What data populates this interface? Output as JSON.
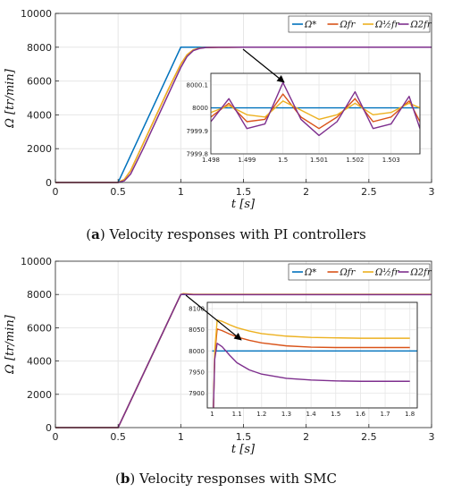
{
  "colors": {
    "ref": "#0072BD",
    "nominal": "#D95319",
    "half": "#EDB120",
    "double": "#7E2F8E",
    "grid": "#e6e6e6",
    "arrow": "#000000"
  },
  "chart_data": [
    {
      "type": "line",
      "panel_label": "a",
      "caption": "Velocity responses with PI controllers",
      "xlabel": "t [s]",
      "ylabel": "Ω [tr/min]",
      "xlim": [
        0,
        3
      ],
      "ylim": [
        0,
        10000
      ],
      "xticks": [
        0,
        0.5,
        1,
        1.5,
        2,
        2.5,
        3
      ],
      "yticks": [
        0,
        2000,
        4000,
        6000,
        8000,
        10000
      ],
      "xtick_labels": [
        "0",
        "0.5",
        "1",
        "1.5",
        "2",
        "2.5",
        "3"
      ],
      "ytick_labels": [
        "0",
        "2000",
        "4000",
        "6000",
        "8000",
        "10000"
      ],
      "grid": true,
      "legend": "top-right",
      "legend_entries": [
        "Ω*",
        "Ωfr",
        "Ω½fr",
        "Ω2fr"
      ],
      "series": [
        {
          "name": "Ω*",
          "x": [
            0,
            0.5,
            1.0,
            3.0
          ],
          "y": [
            0,
            0,
            8000,
            8000
          ]
        },
        {
          "name": "Ωfr",
          "x": [
            0,
            0.5,
            0.55,
            0.6,
            0.7,
            0.8,
            0.9,
            1.0,
            1.05,
            1.1,
            1.15,
            1.2,
            1.3,
            1.5,
            3.0
          ],
          "y": [
            0,
            0,
            180,
            700,
            2300,
            3900,
            5500,
            7000,
            7550,
            7850,
            7950,
            7985,
            7998,
            8000,
            8000
          ]
        },
        {
          "name": "Ω½fr",
          "x": [
            0,
            0.5,
            0.55,
            0.6,
            0.7,
            0.8,
            0.9,
            1.0,
            1.05,
            1.1,
            1.15,
            1.2,
            1.3,
            1.5,
            3.0
          ],
          "y": [
            0,
            0,
            180,
            700,
            2300,
            3900,
            5500,
            7000,
            7550,
            7850,
            7950,
            7985,
            7998,
            8000,
            8000
          ]
        },
        {
          "name": "Ω2fr",
          "x": [
            0,
            0.5,
            0.55,
            0.6,
            0.7,
            0.8,
            0.9,
            1.0,
            1.05,
            1.1,
            1.15,
            1.2,
            1.3,
            1.5,
            3.0
          ],
          "y": [
            0,
            0,
            100,
            500,
            2000,
            3600,
            5200,
            6800,
            7450,
            7800,
            7930,
            7980,
            7997,
            8000,
            8000
          ]
        }
      ],
      "inset": {
        "xlim": [
          1.498,
          1.5038
        ],
        "ylim": [
          7999.8,
          8000.15
        ],
        "xticks": [
          1.498,
          1.499,
          1.5,
          1.501,
          1.502,
          1.503
        ],
        "yticks": [
          7999.8,
          7999.9,
          8000,
          8000.1
        ],
        "xtick_labels": [
          "1.498",
          "1.499",
          "1.5",
          "1.501",
          "1.502",
          "1.503"
        ],
        "ytick_labels": [
          "7999.8",
          "7999.9",
          "8000",
          "8000.1"
        ],
        "series": [
          {
            "name": "Ω*",
            "x": [
              1.498,
              1.5038
            ],
            "y": [
              8000,
              8000
            ]
          },
          {
            "name": "Ωfr",
            "x": [
              1.498,
              1.4985,
              1.499,
              1.4995,
              1.5,
              1.5005,
              1.501,
              1.5015,
              1.502,
              1.5025,
              1.503,
              1.5035,
              1.5038
            ],
            "y": [
              7999.96,
              8000.02,
              7999.94,
              7999.95,
              8000.06,
              7999.96,
              7999.91,
              7999.96,
              8000.04,
              7999.94,
              7999.96,
              8000.03,
              7999.94
            ]
          },
          {
            "name": "Ω½fr",
            "x": [
              1.498,
              1.4985,
              1.499,
              1.4995,
              1.5,
              1.5005,
              1.501,
              1.5015,
              1.502,
              1.5025,
              1.503,
              1.5035,
              1.5038
            ],
            "y": [
              7999.98,
              8000.01,
              7999.97,
              7999.96,
              8000.03,
              7999.99,
              7999.95,
              7999.97,
              8000.02,
              7999.97,
              7999.98,
              8000.02,
              8000.0
            ]
          },
          {
            "name": "Ω2fr",
            "x": [
              1.498,
              1.4985,
              1.499,
              1.4995,
              1.5,
              1.5005,
              1.501,
              1.5015,
              1.502,
              1.5025,
              1.503,
              1.5035,
              1.5038
            ],
            "y": [
              7999.94,
              8000.04,
              7999.91,
              7999.93,
              8000.11,
              7999.95,
              7999.88,
              7999.94,
              8000.07,
              7999.91,
              7999.93,
              8000.05,
              7999.91
            ]
          }
        ]
      }
    },
    {
      "type": "line",
      "panel_label": "b",
      "caption": "Velocity responses with SMC",
      "xlabel": "t [s]",
      "ylabel": "Ω [tr/min]",
      "xlim": [
        0,
        3
      ],
      "ylim": [
        0,
        10000
      ],
      "xticks": [
        0,
        0.5,
        1,
        1.5,
        2,
        2.5,
        3
      ],
      "yticks": [
        0,
        2000,
        4000,
        6000,
        8000,
        10000
      ],
      "xtick_labels": [
        "0",
        "0.5",
        "1",
        "1.5",
        "2",
        "2.5",
        "3"
      ],
      "ytick_labels": [
        "0",
        "2000",
        "4000",
        "6000",
        "8000",
        "10000"
      ],
      "grid": true,
      "legend": "top-right",
      "legend_entries": [
        "Ω*",
        "Ωfr",
        "Ω½fr",
        "Ω2fr"
      ],
      "series": [
        {
          "name": "Ω*",
          "x": [
            0,
            0.5,
            1.0,
            3.0
          ],
          "y": [
            0,
            0,
            8000,
            8000
          ]
        },
        {
          "name": "Ωfr",
          "x": [
            0,
            0.5,
            1.0,
            1.02,
            1.1,
            3.0
          ],
          "y": [
            0,
            0,
            8000,
            8040,
            8000,
            8000
          ]
        },
        {
          "name": "Ω½fr",
          "x": [
            0,
            0.5,
            1.0,
            1.02,
            1.1,
            3.0
          ],
          "y": [
            0,
            0,
            8000,
            8060,
            8010,
            8010
          ]
        },
        {
          "name": "Ω2fr",
          "x": [
            0,
            0.5,
            1.0,
            1.02,
            1.1,
            3.0
          ],
          "y": [
            0,
            0,
            8000,
            8020,
            7990,
            7990
          ]
        }
      ],
      "inset": {
        "xlim": [
          0.98,
          1.83
        ],
        "ylim": [
          7865,
          8115
        ],
        "xticks": [
          1,
          1.1,
          1.2,
          1.3,
          1.4,
          1.5,
          1.6,
          1.7,
          1.8
        ],
        "yticks": [
          7900,
          7950,
          8000,
          8050,
          8100
        ],
        "xtick_labels": [
          "1",
          "1.1",
          "1.2",
          "1.3",
          "1.4",
          "1.5",
          "1.6",
          "1.7",
          "1.8"
        ],
        "ytick_labels": [
          "7900",
          "7950",
          "8000",
          "8050",
          "8100"
        ],
        "series": [
          {
            "name": "Ω*",
            "x": [
              1.0,
              1.83
            ],
            "y": [
              8000,
              8000
            ]
          },
          {
            "name": "Ωfr",
            "x": [
              1.005,
              1.01,
              1.02,
              1.04,
              1.07,
              1.1,
              1.15,
              1.2,
              1.3,
              1.4,
              1.5,
              1.6,
              1.7,
              1.8
            ],
            "y": [
              7865,
              7990,
              8052,
              8048,
              8040,
              8033,
              8025,
              8019,
              8012,
              8009,
              8008,
              8008,
              8008,
              8008
            ]
          },
          {
            "name": "Ω½fr",
            "x": [
              1.005,
              1.01,
              1.02,
              1.04,
              1.07,
              1.1,
              1.15,
              1.2,
              1.3,
              1.4,
              1.5,
              1.6,
              1.7,
              1.8
            ],
            "y": [
              7865,
              8000,
              8073,
              8070,
              8062,
              8055,
              8047,
              8041,
              8035,
              8032,
              8031,
              8030,
              8030,
              8030
            ]
          },
          {
            "name": "Ω2fr",
            "x": [
              1.005,
              1.01,
              1.02,
              1.04,
              1.07,
              1.1,
              1.15,
              1.2,
              1.3,
              1.4,
              1.5,
              1.6,
              1.7,
              1.8
            ],
            "y": [
              7865,
              7980,
              8018,
              8010,
              7990,
              7972,
              7955,
              7945,
              7935,
              7931,
              7929,
              7928,
              7928,
              7928
            ]
          }
        ]
      }
    }
  ]
}
